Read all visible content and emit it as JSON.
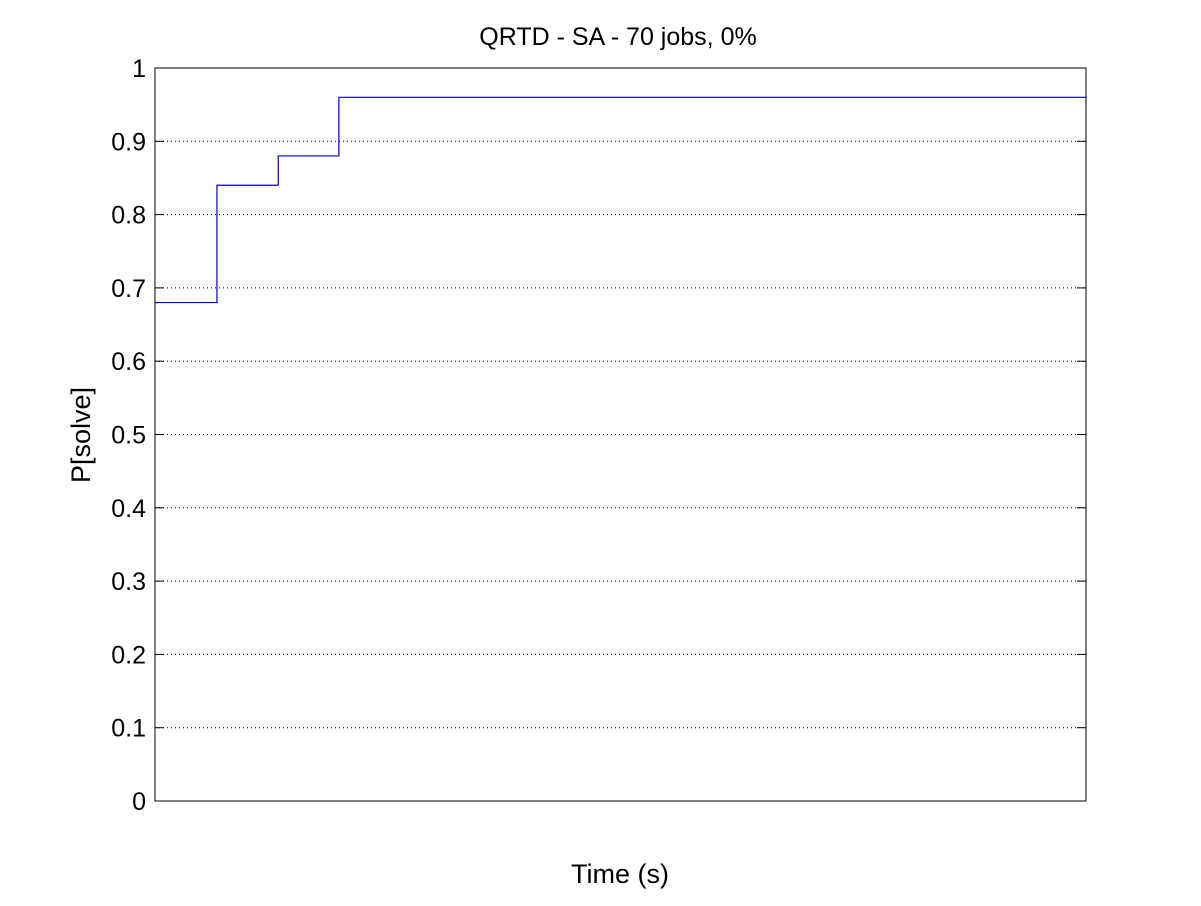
{
  "chart_data": {
    "type": "line",
    "line_style": "step",
    "title": "QRTD - SA - 70 jobs, 0%",
    "xlabel": "Time (s)",
    "ylabel": "P[solve]",
    "x_scale": "log",
    "x_tick_base": "10",
    "x_tick_exponents": [
      "2.37434",
      "2.37435",
      "2.37436"
    ],
    "xlim_exponent": [
      2.373395,
      2.373676
    ],
    "ylim": [
      0,
      1
    ],
    "y_ticks": [
      "0",
      "0.1",
      "0.2",
      "0.3",
      "0.4",
      "0.5",
      "0.6",
      "0.7",
      "0.8",
      "0.9",
      "1"
    ],
    "grid": true,
    "series_color": "#0000cc",
    "series": [
      {
        "x_exponent": [
          2.373395,
          2.3734137,
          2.3734137,
          2.3734322,
          2.3734322,
          2.3734505,
          2.3734505,
          2.373676
        ],
        "values": [
          0.68,
          0.68,
          0.84,
          0.84,
          0.88,
          0.88,
          0.96,
          0.96
        ]
      }
    ]
  }
}
